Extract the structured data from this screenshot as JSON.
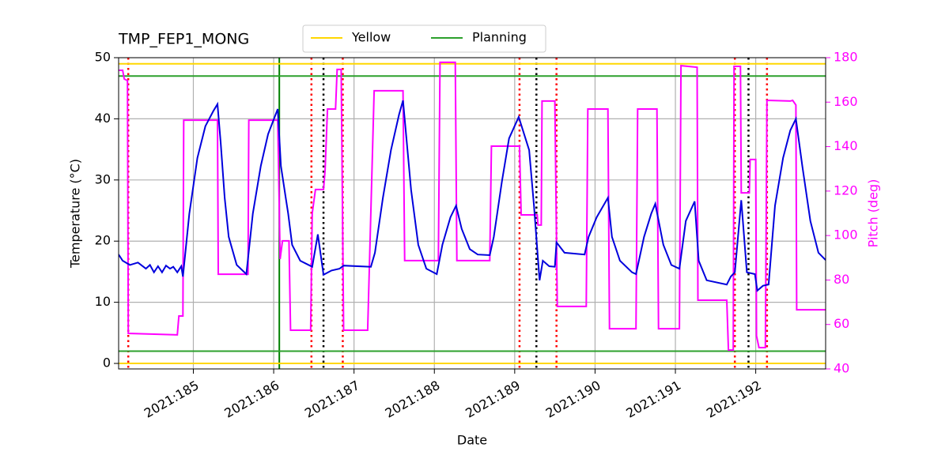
{
  "chart_data": {
    "type": "line",
    "title": "TMP_FEP1_MONG",
    "xlabel": "Date",
    "ylabel": "Temperature (°C)",
    "y2label": "Pitch (deg)",
    "xlim": [
      184.07,
      192.87
    ],
    "ylim": [
      -0.9,
      50
    ],
    "y2lim": [
      40,
      180
    ],
    "xticks": [
      {
        "value": 185,
        "label": "2021:185"
      },
      {
        "value": 186,
        "label": "2021:186"
      },
      {
        "value": 187,
        "label": "2021:187"
      },
      {
        "value": 188,
        "label": "2021:188"
      },
      {
        "value": 189,
        "label": "2021:189"
      },
      {
        "value": 190,
        "label": "2021:190"
      },
      {
        "value": 191,
        "label": "2021:191"
      },
      {
        "value": 192,
        "label": "2021:192"
      }
    ],
    "yticks": [
      0,
      10,
      20,
      30,
      40,
      50
    ],
    "y2ticks": [
      40,
      60,
      80,
      100,
      120,
      140,
      160,
      180
    ],
    "y2color": "#ff00ff",
    "grid": true,
    "legend": "upper center outside",
    "hlines": [
      {
        "name": "Yellow",
        "color": "#ffd700",
        "values": [
          49,
          0
        ]
      },
      {
        "name": "Planning",
        "color": "#2ca02c",
        "values": [
          47,
          2
        ]
      }
    ],
    "vlines": [
      {
        "color": "#ff0000",
        "style": "dotted",
        "x": [
          184.19,
          186.47,
          186.86,
          189.06,
          189.52,
          191.74,
          192.14
        ]
      },
      {
        "color": "#000000",
        "style": "dotted",
        "x": [
          186.62,
          189.27,
          191.91
        ]
      },
      {
        "color": "#008000",
        "style": "solid",
        "x": [
          186.07
        ]
      }
    ],
    "series": [
      {
        "color": "#ff00ff",
        "axis": "y2",
        "x": [
          184.07,
          184.12,
          184.14,
          184.18,
          184.19,
          184.8,
          184.82,
          184.87,
          184.88,
          185.3,
          185.31,
          185.68,
          185.69,
          186.05,
          186.08,
          186.11,
          186.19,
          186.21,
          186.46,
          186.48,
          186.52,
          186.62,
          186.64,
          186.67,
          186.77,
          186.79,
          186.84,
          186.87,
          187.17,
          187.25,
          187.61,
          187.63,
          188.05,
          188.07,
          188.26,
          188.28,
          188.69,
          188.71,
          189.06,
          189.08,
          189.28,
          189.29,
          189.33,
          189.34,
          189.5,
          189.53,
          189.89,
          189.91,
          190.16,
          190.18,
          190.51,
          190.53,
          190.77,
          190.79,
          191.05,
          191.07,
          191.27,
          191.28,
          191.64,
          191.66,
          191.72,
          191.73,
          191.81,
          191.82,
          191.92,
          191.93,
          192.0,
          192.01,
          192.04,
          192.12,
          192.14,
          192.43,
          192.46,
          192.5,
          192.51,
          192.87
        ],
        "values": [
          174.3,
          174.3,
          170.4,
          169.7,
          56.0,
          55.3,
          63.8,
          63.8,
          151.9,
          151.9,
          82.6,
          82.6,
          151.9,
          151.9,
          89.4,
          97.6,
          97.6,
          57.4,
          57.4,
          110.0,
          120.7,
          120.7,
          129.5,
          156.9,
          156.9,
          174.7,
          174.7,
          57.4,
          57.4,
          165.1,
          165.1,
          88.7,
          88.7,
          177.9,
          177.9,
          88.7,
          88.7,
          140.2,
          140.2,
          109.3,
          109.3,
          104.7,
          104.7,
          160.5,
          160.5,
          68.1,
          68.1,
          156.9,
          156.9,
          58.1,
          58.1,
          156.9,
          156.9,
          58.1,
          58.1,
          176.4,
          175.7,
          70.9,
          70.9,
          48.5,
          48.5,
          176.1,
          176.1,
          119.2,
          119.2,
          134.2,
          134.2,
          54.9,
          49.6,
          49.6,
          160.8,
          160.5,
          160.8,
          158.7,
          66.6,
          66.6
        ]
      },
      {
        "color": "#0000dd",
        "axis": "y",
        "x": [
          184.07,
          184.12,
          184.21,
          184.31,
          184.41,
          184.46,
          184.51,
          184.56,
          184.61,
          184.66,
          184.71,
          184.75,
          184.8,
          184.85,
          184.87,
          184.95,
          185.05,
          185.15,
          185.25,
          185.3,
          185.34,
          185.39,
          185.44,
          185.54,
          185.66,
          185.74,
          185.84,
          185.93,
          186.05,
          186.09,
          186.15,
          186.18,
          186.23,
          186.33,
          186.48,
          186.55,
          186.62,
          186.72,
          186.82,
          186.87,
          187.21,
          187.26,
          187.36,
          187.46,
          187.56,
          187.61,
          187.71,
          187.8,
          187.9,
          188.03,
          188.1,
          188.2,
          188.27,
          188.34,
          188.44,
          188.54,
          188.69,
          188.74,
          188.84,
          188.93,
          189.05,
          189.18,
          189.24,
          189.31,
          189.35,
          189.43,
          189.5,
          189.52,
          189.62,
          189.87,
          189.92,
          190.02,
          190.16,
          190.21,
          190.31,
          190.46,
          190.51,
          190.61,
          190.7,
          190.75,
          190.85,
          190.95,
          191.05,
          191.13,
          191.24,
          191.29,
          191.39,
          191.64,
          191.69,
          191.74,
          191.82,
          191.89,
          191.99,
          192.02,
          192.09,
          192.16,
          192.24,
          192.34,
          192.43,
          192.5,
          192.58,
          192.68,
          192.78,
          192.87
        ],
        "values": [
          17.8,
          16.8,
          16.1,
          16.5,
          15.5,
          16.1,
          14.9,
          15.9,
          14.9,
          16.0,
          15.5,
          15.8,
          14.9,
          15.9,
          14.2,
          24.5,
          33.6,
          38.8,
          41.3,
          42.4,
          36.2,
          27.1,
          20.7,
          16.1,
          14.6,
          24.5,
          32.3,
          37.5,
          41.6,
          32.3,
          27.1,
          24.5,
          19.4,
          16.8,
          15.8,
          21.1,
          14.5,
          15.2,
          15.5,
          16.0,
          15.8,
          18.1,
          27.1,
          34.9,
          40.7,
          43.0,
          28.4,
          19.4,
          15.5,
          14.6,
          19.4,
          23.9,
          25.8,
          22.0,
          18.7,
          17.8,
          17.7,
          20.7,
          29.7,
          36.8,
          40.3,
          34.9,
          25.8,
          13.6,
          16.8,
          15.9,
          15.8,
          19.8,
          18.1,
          17.8,
          20.7,
          23.9,
          27.1,
          20.7,
          16.8,
          14.9,
          14.6,
          20.7,
          24.5,
          26.1,
          19.4,
          16.1,
          15.5,
          23.3,
          26.5,
          16.8,
          13.6,
          12.9,
          14.2,
          14.9,
          26.7,
          14.9,
          14.6,
          11.9,
          12.7,
          12.9,
          25.8,
          33.6,
          38.1,
          40.0,
          32.3,
          23.3,
          18.1,
          16.9
        ]
      }
    ]
  }
}
